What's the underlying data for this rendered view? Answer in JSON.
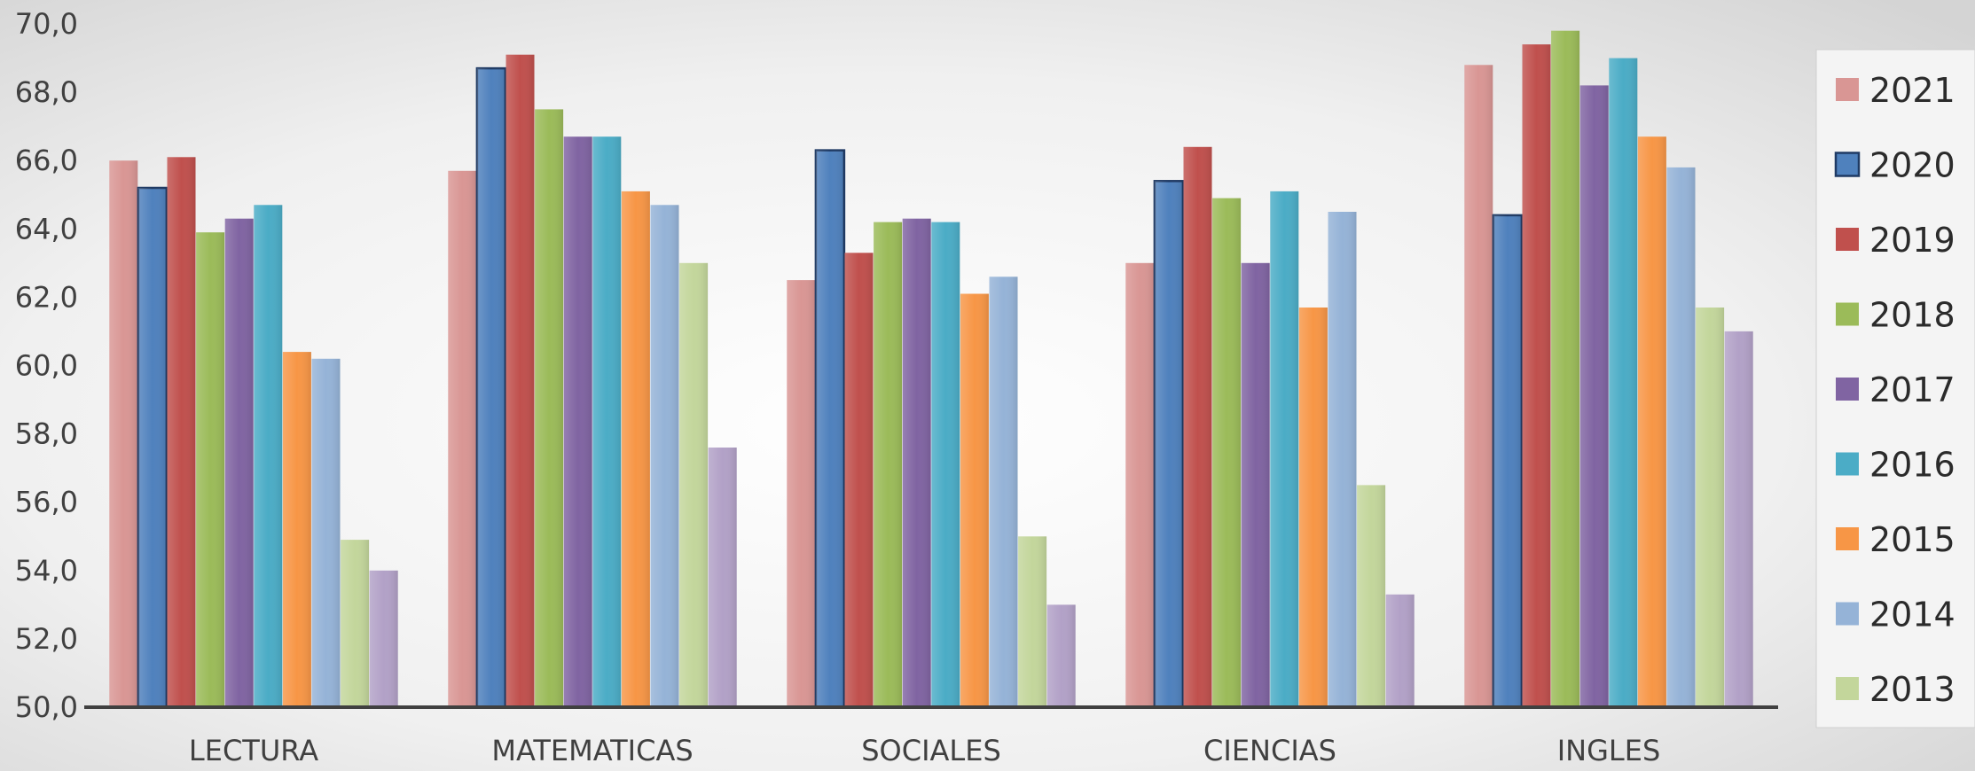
{
  "chart_data": {
    "type": "bar",
    "categories": [
      "LECTURA",
      "MATEMATICAS",
      "SOCIALES",
      "CIENCIAS",
      "INGLES"
    ],
    "y_tick_labels": [
      "50,0",
      "52,0",
      "54,0",
      "56,0",
      "58,0",
      "60,0",
      "62,0",
      "64,0",
      "66,0",
      "68,0",
      "70,0"
    ],
    "ylim": [
      50,
      70
    ],
    "grid": false,
    "legend_position": "right",
    "series": [
      {
        "name": "2021",
        "color": "#d99694",
        "values": [
          66.0,
          65.7,
          62.5,
          63.0,
          68.8
        ]
      },
      {
        "name": "2020",
        "color": "#4f81bd",
        "values": [
          65.2,
          68.7,
          66.3,
          65.4,
          64.4
        ]
      },
      {
        "name": "2019",
        "color": "#c0504d",
        "values": [
          66.1,
          69.1,
          63.3,
          66.4,
          69.4
        ]
      },
      {
        "name": "2018",
        "color": "#9bbb59",
        "values": [
          63.9,
          67.5,
          64.2,
          64.9,
          69.8
        ]
      },
      {
        "name": "2017",
        "color": "#8064a2",
        "values": [
          64.3,
          66.7,
          64.3,
          63.0,
          68.2
        ]
      },
      {
        "name": "2016",
        "color": "#4bacc6",
        "values": [
          64.7,
          66.7,
          64.2,
          65.1,
          69.0
        ]
      },
      {
        "name": "2015",
        "color": "#f79646",
        "values": [
          60.4,
          65.1,
          62.1,
          61.7,
          66.7
        ]
      },
      {
        "name": "2014",
        "color": "#95b3d7",
        "values": [
          60.2,
          64.7,
          62.6,
          64.5,
          65.8
        ]
      },
      {
        "name": "2013",
        "color": "#c3d69b",
        "values": [
          54.9,
          63.0,
          55.0,
          56.5,
          61.7
        ]
      },
      {
        "name": "",
        "color": "#b2a1c7",
        "values": [
          54.0,
          57.6,
          53.0,
          53.3,
          61.0
        ]
      }
    ]
  }
}
